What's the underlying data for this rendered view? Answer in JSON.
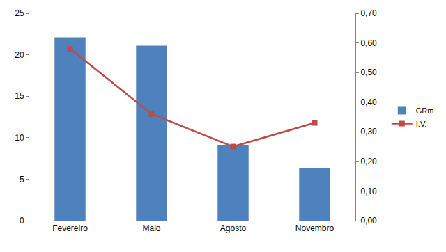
{
  "chart_data": {
    "type": "bar",
    "categories": [
      "Fevereiro",
      "Maio",
      "Agosto",
      "Novembro"
    ],
    "series": [
      {
        "name": "GRm",
        "type": "bar",
        "color": "#4f81bd",
        "values": [
          22.1,
          21.1,
          9.1,
          6.3
        ]
      },
      {
        "name": "I.V.",
        "type": "line",
        "color": "#be4b48",
        "marker": "square",
        "axis": "y2",
        "values": [
          0.58,
          0.36,
          0.25,
          0.33
        ]
      }
    ],
    "ylim": [
      0,
      25
    ],
    "yticks": [
      0,
      5,
      10,
      15,
      20,
      25
    ],
    "y2lim": [
      0,
      0.7
    ],
    "y2ticks": [
      {
        "value": 0,
        "label": "0,00"
      },
      {
        "value": 0.1,
        "label": "0,10"
      },
      {
        "value": 0.2,
        "label": "0,20"
      },
      {
        "value": 0.3,
        "label": "0,30"
      },
      {
        "value": 0.4,
        "label": "0,40"
      },
      {
        "value": 0.5,
        "label": "0,50"
      },
      {
        "value": 0.6,
        "label": "0,60"
      },
      {
        "value": 0.7,
        "label": "0,70"
      }
    ],
    "grid": false,
    "legend": "right"
  }
}
